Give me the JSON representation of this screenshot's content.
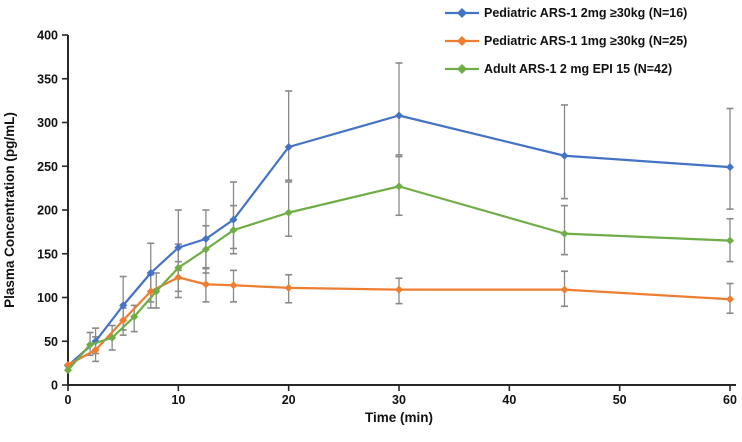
{
  "figure": {
    "background": "#FFFFFF",
    "axis_color": "#262626",
    "error_bar_color": "#898989",
    "y_axis_title": "Plasma Concentration (pg/mL)",
    "x_axis_title": "Time (min)"
  },
  "legend": {
    "items": [
      {
        "label": "Pediatric ARS-1 2mg ≥30kg (N=16)"
      },
      {
        "label": "Pediatric ARS-1 1mg ≥30kg (N=25)"
      },
      {
        "label": "Adult ARS-1 2 mg EPI 15 (N=42)"
      }
    ]
  },
  "chart_data": {
    "type": "line",
    "title": "",
    "xlabel": "Time (min)",
    "ylabel": "Plasma Concentration (pg/mL)",
    "xlim": [
      0,
      60
    ],
    "ylim": [
      0,
      400
    ],
    "x_tick_step": 10,
    "y_tick_step": 50,
    "grid": false,
    "legend_position": "top-right",
    "error_bars": true,
    "marker": "diamond",
    "series": [
      {
        "name": "Pediatric ARS-1 2mg ≥30kg (N=16)",
        "color": "#4472C4",
        "x": [
          0,
          2.5,
          5,
          7.5,
          10,
          12.5,
          15,
          20,
          30,
          45,
          60
        ],
        "y": [
          22,
          50,
          91,
          128,
          157,
          167,
          189,
          272,
          308,
          262,
          249
        ],
        "err_low": [
          22,
          36,
          63,
          95,
          131,
          134,
          156,
          234,
          263,
          213,
          201
        ],
        "err_high": [
          22,
          65,
          124,
          162,
          200,
          200,
          232,
          336,
          368,
          320,
          316
        ]
      },
      {
        "name": "Pediatric ARS-1 1mg ≥30kg (N=25)",
        "color": "#ED7D31",
        "x": [
          0,
          2.5,
          5,
          7.5,
          10,
          12.5,
          15,
          20,
          30,
          45,
          60
        ],
        "y": [
          23,
          40,
          74,
          107,
          123,
          115,
          114,
          111,
          109,
          109,
          98
        ],
        "err_low": [
          23,
          27,
          57,
          88,
          100,
          95,
          95,
          94,
          93,
          90,
          82
        ],
        "err_high": [
          23,
          55,
          88,
          126,
          141,
          133,
          131,
          126,
          122,
          130,
          116
        ]
      },
      {
        "name": "Adult ARS-1 2 mg EPI 15 (N=42)",
        "color": "#70AD47",
        "x": [
          0,
          2,
          4,
          6,
          8,
          10,
          12.5,
          15,
          20,
          30,
          45,
          60
        ],
        "y": [
          17,
          46,
          54,
          78,
          107,
          134,
          155,
          177,
          197,
          227,
          173,
          165
        ],
        "err_low": [
          17,
          34,
          40,
          61,
          88,
          107,
          128,
          150,
          170,
          194,
          149,
          141
        ],
        "err_high": [
          17,
          60,
          68,
          91,
          128,
          161,
          182,
          205,
          232,
          261,
          205,
          190
        ]
      }
    ]
  }
}
